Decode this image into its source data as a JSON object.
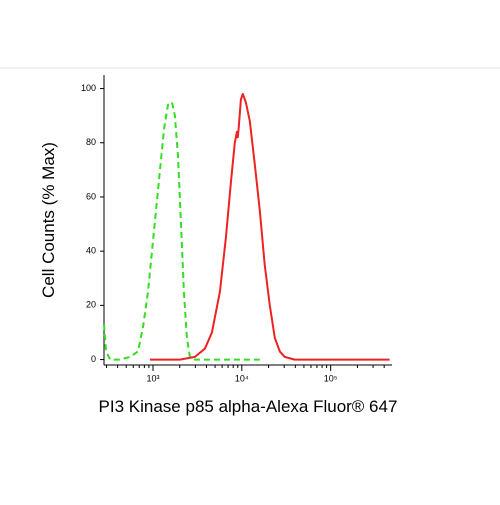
{
  "chart_data": {
    "type": "line",
    "x_label": "PI3 Kinase p85 alpha-Alexa Fluor® 647",
    "y_label": "Cell Counts (% Max)",
    "x_scale": "log",
    "xlim": [
      281,
      490000
    ],
    "ylim": [
      -2,
      105
    ],
    "xticks": [
      {
        "value": 1000,
        "label": "10³"
      },
      {
        "value": 10000,
        "label": "10⁴"
      },
      {
        "value": 100000,
        "label": "10⁵"
      }
    ],
    "xminorticks": [
      300,
      400,
      500,
      600,
      700,
      800,
      900,
      2000,
      3000,
      4000,
      5000,
      6000,
      7000,
      8000,
      9000,
      20000,
      30000,
      40000,
      50000,
      60000,
      70000,
      80000,
      90000,
      200000,
      300000,
      400000
    ],
    "yticks": [
      0,
      20,
      40,
      60,
      80,
      100
    ],
    "series": [
      {
        "color": "#33dd22",
        "line_style": "dashed",
        "x": [
          281,
          297,
          329,
          426,
          552,
          678,
          773,
          879,
          975,
          1081,
          1199,
          1330,
          1475,
          1634,
          1766,
          1910,
          2066,
          2230,
          2410,
          2606,
          2965,
          15920
        ],
        "values": [
          13,
          3,
          0,
          0,
          1,
          3,
          12,
          25,
          40,
          55,
          70,
          85,
          94,
          95,
          90,
          75,
          50,
          25,
          8,
          1,
          0,
          0
        ]
      },
      {
        "color": "#ee2222",
        "line_style": "solid",
        "x": [
          925,
          2012,
          2965,
          3837,
          4603,
          5662,
          6610,
          7520,
          8340,
          8790,
          9020,
          9250,
          9750,
          10260,
          11090,
          12300,
          14000,
          15920,
          18110,
          20640,
          23500,
          26750,
          30400,
          39400,
          460000
        ],
        "values": [
          0,
          0,
          1,
          4,
          10,
          25,
          45,
          65,
          80,
          84,
          82,
          86,
          96,
          98,
          95,
          88,
          72,
          55,
          35,
          20,
          8,
          3,
          1,
          0,
          0
        ]
      }
    ]
  }
}
